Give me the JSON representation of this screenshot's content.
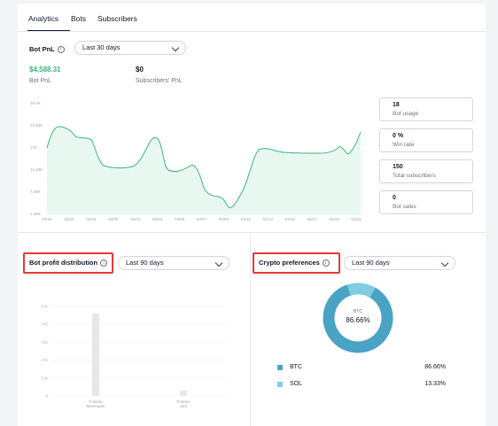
{
  "tabs": [
    "Analytics",
    "Bots",
    "Subscribers"
  ],
  "pnl_section": {
    "title": "Bot PnL",
    "info_icon": "info-icon",
    "range": "Last 30 days",
    "bot_pnl_value": "$4,588.31",
    "bot_pnl_label": "Bot PnL",
    "subs_pnl_value": "$0",
    "subs_pnl_label": "Subscribers' PnL",
    "accent_color": "#3bb77e"
  },
  "metrics": [
    {
      "value": "18",
      "label": "Bot usage"
    },
    {
      "value": "0 %",
      "label": "Win rate"
    },
    {
      "value": "150",
      "label": "Total subscribers"
    },
    {
      "value": "0",
      "label": "Bot sales"
    }
  ],
  "pnl_chart": {
    "y_ticks": [
      "26.4K",
      "21.63K",
      "17K",
      "12.19K",
      "7.38K",
      "2.59K"
    ],
    "x_ticks": [
      "03/24",
      "03/26",
      "03/28",
      "03/30",
      "04/01",
      "04/03",
      "04/05",
      "04/07",
      "04/09",
      "04/11",
      "04/13",
      "04/15",
      "04/17",
      "04/19",
      "04/21"
    ],
    "line_color": "#3bb77e",
    "fill_color": "#e8f7ef"
  },
  "profit_distribution": {
    "title": "Bot profit distribution",
    "info_icon": "info-icon",
    "range": "Last 90 days",
    "y_ticks": [
      "5 K",
      "4 K",
      "3 K",
      "2 K",
      "1 K",
      "0"
    ],
    "bars": [
      {
        "label_line1": "Futures",
        "label_line2": "Martingale",
        "value": 4600
      },
      {
        "label_line1": "Futures",
        "label_line2": "grid",
        "value": 300
      }
    ],
    "bar_color": "#e5e7eb"
  },
  "crypto_preferences": {
    "title": "Crypto preferences",
    "info_icon": "info-icon",
    "range": "Last 90 days",
    "center_label": "BTC",
    "center_value": "86.66%",
    "items": [
      {
        "name": "BTC",
        "percent": "86.66%",
        "value": 86.66,
        "color": "#4aa3c4"
      },
      {
        "name": "SOL",
        "percent": "13.33%",
        "value": 13.33,
        "color": "#7fcde0"
      }
    ]
  }
}
